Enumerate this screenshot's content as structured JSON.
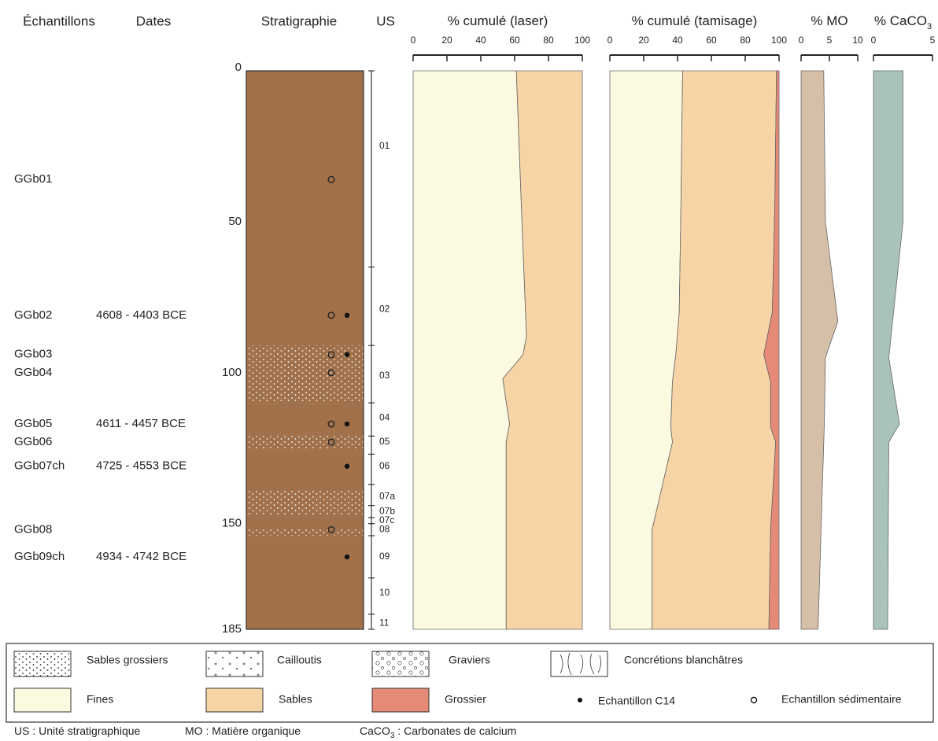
{
  "headers": {
    "samples": "Échantillons",
    "dates": "Dates",
    "stratigraphy": "Stratigraphie",
    "us": "US"
  },
  "depth_axis": {
    "ylim": [
      0,
      185
    ],
    "yticks": [
      0,
      50,
      100,
      150,
      185
    ]
  },
  "stratigraphy": {
    "color": "#a0714a",
    "bands": [
      {
        "from": 91,
        "to": 110
      },
      {
        "from": 121,
        "to": 125
      },
      {
        "from": 139,
        "to": 147
      },
      {
        "from": 152,
        "to": 154
      }
    ]
  },
  "samples": [
    {
      "name": "GGb01",
      "depth": 36,
      "sediment": true,
      "c14": false
    },
    {
      "name": "GGb02",
      "date": "4608 - 4403 BCE",
      "depth": 81,
      "sediment": true,
      "c14": true
    },
    {
      "name": "GGb03",
      "depth": 94,
      "sediment": true,
      "c14": true
    },
    {
      "name": "GGb04",
      "depth": 100,
      "sediment": true,
      "c14": false
    },
    {
      "name": "GGb05",
      "date": "4611 - 4457 BCE",
      "depth": 117,
      "sediment": true,
      "c14": true
    },
    {
      "name": "GGb06",
      "depth": 123,
      "sediment": true,
      "c14": false
    },
    {
      "name": "GGb07ch",
      "date": "4725 - 4553 BCE",
      "depth": 131,
      "sediment": false,
      "c14": true
    },
    {
      "name": "GGb08",
      "depth": 152,
      "sediment": true,
      "c14": false
    },
    {
      "name": "GGb09ch",
      "date": "4934 - 4742 BCE",
      "depth": 161,
      "sediment": false,
      "c14": true
    }
  ],
  "us": {
    "boundaries": [
      0,
      65,
      91,
      110,
      121,
      127,
      137,
      144,
      148,
      150,
      154,
      168,
      180,
      185
    ],
    "units": [
      {
        "label": "01",
        "depth": 25
      },
      {
        "label": "02",
        "depth": 79
      },
      {
        "label": "03",
        "depth": 101
      },
      {
        "label": "04",
        "depth": 115
      },
      {
        "label": "05",
        "depth": 123
      },
      {
        "label": "06",
        "depth": 131
      },
      {
        "label": "07a",
        "depth": 141
      },
      {
        "label": "07b",
        "depth": 146
      },
      {
        "label": "07c",
        "depth": 149
      },
      {
        "label": "08",
        "depth": 152
      },
      {
        "label": "09",
        "depth": 161
      },
      {
        "label": "10",
        "depth": 173
      },
      {
        "label": "11",
        "depth": 183
      }
    ]
  },
  "chart_data": [
    {
      "type": "area",
      "title": "% cumulé (laser)",
      "xlim": [
        0,
        100
      ],
      "xticks": [
        0,
        20,
        40,
        60,
        80,
        100
      ],
      "y": [
        0,
        45,
        88,
        94,
        102,
        117,
        123,
        185
      ],
      "series": [
        {
          "name": "Fines",
          "color": "#fcf9e1",
          "values": [
            61,
            64,
            67,
            65,
            53,
            57,
            55,
            55
          ]
        },
        {
          "name": "Sables",
          "color": "#f7d4a6",
          "values": [
            39,
            36,
            33,
            35,
            47,
            43,
            45,
            45
          ]
        }
      ]
    },
    {
      "type": "area",
      "title": "% cumulé (tamisage)",
      "xlim": [
        0,
        100
      ],
      "xticks": [
        0,
        20,
        40,
        60,
        80,
        100
      ],
      "y": [
        0,
        45,
        80,
        94,
        103,
        118,
        123,
        152,
        185
      ],
      "series": [
        {
          "name": "Fines",
          "color": "#fcf9e1",
          "values": [
            43,
            42,
            41,
            39,
            37,
            36,
            37,
            25,
            25
          ]
        },
        {
          "name": "Sables",
          "color": "#f7d4a6",
          "values": [
            55.5,
            55.5,
            55,
            52,
            58,
            59,
            61,
            70,
            69
          ]
        },
        {
          "name": "Grossier",
          "color": "#e68a78",
          "values": [
            1.5,
            2.5,
            4,
            9,
            5,
            5,
            2,
            5,
            6
          ]
        }
      ]
    },
    {
      "type": "area",
      "title": "% MO",
      "xlim": [
        0,
        10
      ],
      "xticks": [
        0,
        5,
        10
      ],
      "y": [
        0,
        50,
        83,
        95,
        117,
        185
      ],
      "series": [
        {
          "color": "#d6bfa8",
          "values": [
            4,
            4.3,
            6.5,
            4.3,
            4.1,
            3
          ]
        }
      ]
    },
    {
      "type": "area",
      "title": "% CaCO",
      "title_sub": "3",
      "xlim": [
        0,
        5
      ],
      "xticks": [
        0,
        5
      ],
      "y": [
        0,
        50,
        95,
        117,
        123,
        185
      ],
      "series": [
        {
          "color": "#a9c3bc",
          "values": [
            2.5,
            2.5,
            1.3,
            2.2,
            1.3,
            1.2
          ]
        }
      ]
    }
  ],
  "legend": {
    "patterns": [
      "Sables grossiers",
      "Cailloutis",
      "Graviers",
      "Concrétions blanchâtres"
    ],
    "c14": "Echantillon C14",
    "sediment": "Echantillon sédimentaire",
    "notes": [
      {
        "text": "US : Unité stratigraphique"
      },
      {
        "text": "MO : Matière organique"
      },
      {
        "text": "CaCO",
        "sub": "3",
        "rest": " : Carbonates de calcium"
      }
    ]
  }
}
